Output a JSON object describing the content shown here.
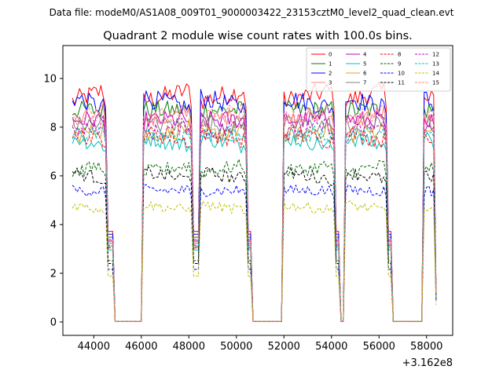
{
  "chart_data": {
    "type": "line",
    "suptitle": "Data file: modeM0/AS1A08_009T01_9000003422_23153cztM0_level2_quad_clean.evt",
    "title": "Quadrant 2 module wise count rates with 100.0s bins.",
    "xlabel": "",
    "ylabel": "",
    "x_offset_text": "+3.162e8",
    "xlim": [
      42700,
      59100
    ],
    "ylim": [
      -0.55,
      11.35
    ],
    "xticks": [
      44000,
      46000,
      48000,
      50000,
      52000,
      54000,
      56000,
      58000
    ],
    "xtick_labels": [
      "44000",
      "46000",
      "48000",
      "50000",
      "52000",
      "54000",
      "56000",
      "58000"
    ],
    "yticks": [
      0,
      2,
      4,
      6,
      8,
      10
    ],
    "ytick_labels": [
      "0",
      "2",
      "4",
      "6",
      "8",
      "10"
    ],
    "segments": [
      {
        "start": 43100,
        "end": 44500,
        "fall_end": 44800
      },
      {
        "start": 46100,
        "end": 48100,
        "fall_end": 48400
      },
      {
        "start": 48500,
        "end": 50400,
        "fall_end": 50600
      },
      {
        "start": 52000,
        "end": 54100,
        "fall_end": 54300
      },
      {
        "start": 54600,
        "end": 56300,
        "fall_end": 56500
      },
      {
        "start": 57900,
        "end": 58400,
        "fall_end": 58400
      }
    ],
    "series": [
      {
        "name": "0",
        "color": "#ff0000",
        "dash": false,
        "level": 9.3
      },
      {
        "name": "1",
        "color": "#008000",
        "dash": false,
        "level": 8.7
      },
      {
        "name": "2",
        "color": "#0000ff",
        "dash": false,
        "level": 9.0
      },
      {
        "name": "3",
        "color": "#ff8080",
        "dash": false,
        "level": 8.4
      },
      {
        "name": "4",
        "color": "#bf00bf",
        "dash": false,
        "level": 8.3
      },
      {
        "name": "5",
        "color": "#00bfbf",
        "dash": false,
        "level": 7.4
      },
      {
        "name": "6",
        "color": "#daa520",
        "dash": false,
        "level": 7.8
      },
      {
        "name": "7",
        "color": "#808080",
        "dash": false,
        "level": 8.1
      },
      {
        "name": "8",
        "color": "#ff0000",
        "dash": true,
        "level": 7.6
      },
      {
        "name": "9",
        "color": "#006400",
        "dash": true,
        "level": 6.3
      },
      {
        "name": "10",
        "color": "#0000ff",
        "dash": true,
        "level": 5.4
      },
      {
        "name": "11",
        "color": "#000000",
        "dash": true,
        "level": 6.0
      },
      {
        "name": "12",
        "color": "#bf00bf",
        "dash": true,
        "level": 7.9
      },
      {
        "name": "13",
        "color": "#00bfbf",
        "dash": true,
        "level": 7.7
      },
      {
        "name": "14",
        "color": "#bfbf00",
        "dash": true,
        "level": 4.7
      },
      {
        "name": "15",
        "color": "#ff8080",
        "dash": true,
        "level": 8.5
      }
    ],
    "legend": {
      "placement": "upper-right",
      "columns": 4
    }
  }
}
